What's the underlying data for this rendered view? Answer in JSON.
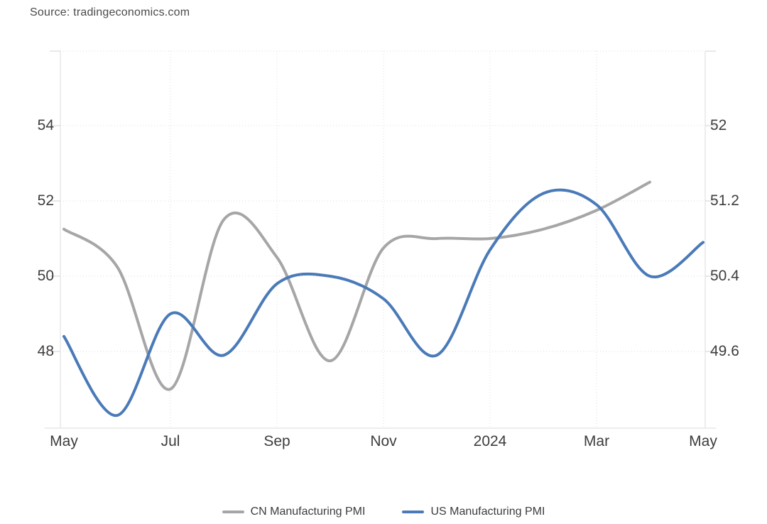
{
  "source": {
    "text": "Source: tradingeconomics.com"
  },
  "legend": {
    "items": [
      {
        "label": "CN Manufacturing PMI"
      },
      {
        "label": "US Manufacturing PMI"
      }
    ]
  },
  "chart_data": {
    "type": "line",
    "title": "",
    "subtitle": "",
    "x_categories": [
      "May 2023",
      "Jun 2023",
      "Jul 2023",
      "Aug 2023",
      "Sep 2023",
      "Oct 2023",
      "Nov 2023",
      "Dec 2023",
      "Jan 2024",
      "Feb 2024",
      "Mar 2024",
      "Apr 2024",
      "May 2024"
    ],
    "x_tick_labels": [
      {
        "label": "May",
        "index": 0,
        "gridline": false
      },
      {
        "label": "Jul",
        "index": 2,
        "gridline": true
      },
      {
        "label": "Sep",
        "index": 4,
        "gridline": true
      },
      {
        "label": "Nov",
        "index": 6,
        "gridline": true
      },
      {
        "label": "2024",
        "index": 8,
        "gridline": true
      },
      {
        "label": "Mar",
        "index": 10,
        "gridline": true
      },
      {
        "label": "May",
        "index": 12,
        "gridline": false
      }
    ],
    "left_axis": {
      "ticks": [
        54,
        52,
        50,
        48
      ]
    },
    "right_axis": {
      "ticks": [
        52,
        51.2,
        50.4,
        49.6
      ]
    },
    "grid": "dotted",
    "legend_position": "bottom",
    "series": [
      {
        "name": "CN Manufacturing PMI",
        "axis": "right",
        "color": "#a6a6a6",
        "start_index": 0,
        "values": [
          50.9,
          50.5,
          49.2,
          51.0,
          50.6,
          49.5,
          50.7,
          50.8,
          50.8,
          50.9,
          51.1,
          51.4
        ]
      },
      {
        "name": "US Manufacturing PMI",
        "axis": "left",
        "color": "#4a7ab8",
        "start_index": 0,
        "values": [
          48.4,
          46.3,
          49.0,
          47.9,
          49.8,
          50.0,
          49.4,
          47.9,
          50.7,
          52.2,
          51.9,
          50.0,
          50.9
        ]
      }
    ]
  }
}
